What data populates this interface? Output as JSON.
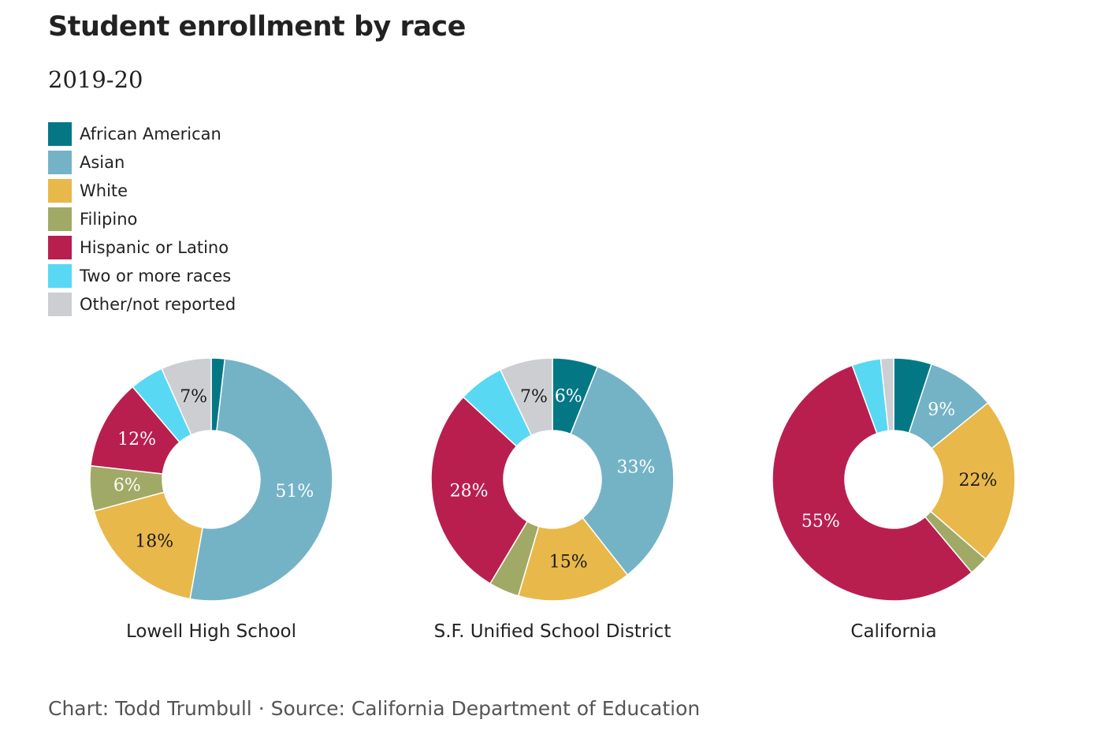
{
  "title": "Student enrollment by race",
  "subtitle": "2019-20",
  "legend": [
    {
      "label": "African American",
      "color": "#047785"
    },
    {
      "label": "Asian",
      "color": "#74b3c6"
    },
    {
      "label": "White",
      "color": "#e8b84b"
    },
    {
      "label": "Filipino",
      "color": "#a1a966"
    },
    {
      "label": "Hispanic or Latino",
      "color": "#b81f4f"
    },
    {
      "label": "Two or more races",
      "color": "#59d8f3"
    },
    {
      "label": "Other/not reported",
      "color": "#ccced2"
    }
  ],
  "source": "Chart: Todd Trumbull · Source: California Department of Education",
  "chart_data": [
    {
      "type": "pie",
      "donut": true,
      "label": "Lowell High School",
      "categories": [
        "African American",
        "Asian",
        "White",
        "Filipino",
        "Hispanic or Latino",
        "Two or more races",
        "Other/not reported"
      ],
      "values": [
        1.8,
        51,
        18,
        6,
        12,
        4.5,
        6.7
      ],
      "data_labels": [
        "",
        "51%",
        "18%",
        "6%",
        "12%",
        "",
        "7%"
      ]
    },
    {
      "type": "pie",
      "donut": true,
      "label": "S.F. Unified School District",
      "categories": [
        "African American",
        "Asian",
        "White",
        "Filipino",
        "Hispanic or Latino",
        "Two or more races",
        "Other/not reported"
      ],
      "values": [
        6,
        33,
        15,
        4,
        28,
        6,
        7
      ],
      "data_labels": [
        "6%",
        "33%",
        "15%",
        "",
        "28%",
        "",
        "7%"
      ]
    },
    {
      "type": "pie",
      "donut": true,
      "label": "California",
      "categories": [
        "African American",
        "Asian",
        "White",
        "Filipino",
        "Hispanic or Latino",
        "Two or more races",
        "Other/not reported"
      ],
      "values": [
        5,
        9,
        22,
        2.5,
        55,
        3.8,
        1.7
      ],
      "data_labels": [
        "",
        "9%",
        "22%",
        "",
        "55%",
        "",
        ""
      ]
    }
  ]
}
